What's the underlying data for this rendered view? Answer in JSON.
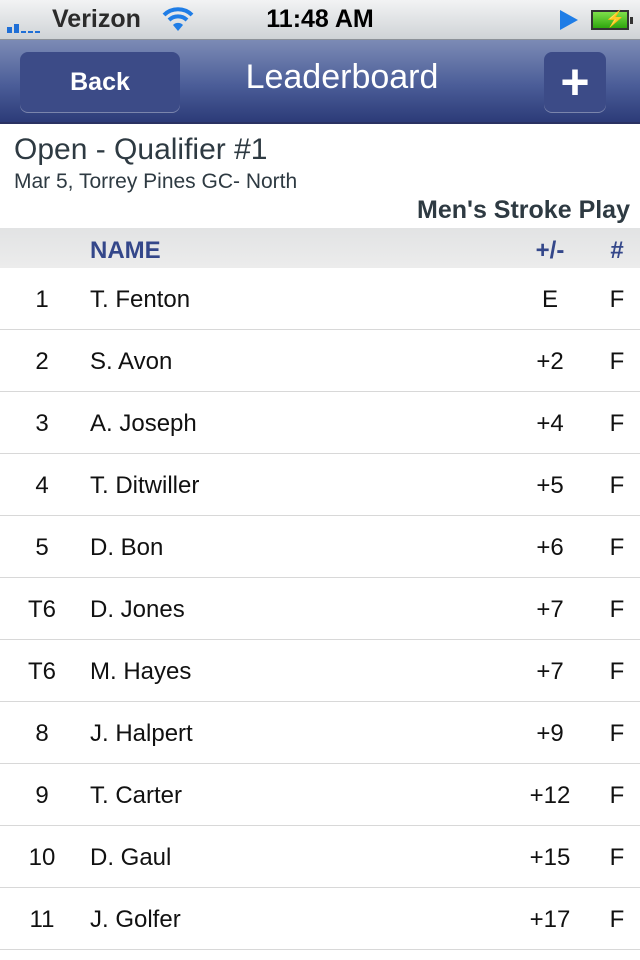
{
  "status_bar": {
    "carrier": "Verizon",
    "time": "11:48 AM"
  },
  "nav": {
    "back_label": "Back",
    "title": "Leaderboard",
    "add_label": "+"
  },
  "event": {
    "name": "Open - Qualifier #1",
    "details": "Mar 5, Torrey Pines GC- North",
    "category": "Men's Stroke Play"
  },
  "table": {
    "headers": {
      "position": "",
      "name": "NAME",
      "score": "+/-",
      "thru": "#"
    },
    "rows": [
      {
        "pos": "1",
        "name": "T. Fenton",
        "score": "E",
        "thru": "F"
      },
      {
        "pos": "2",
        "name": "S. Avon",
        "score": "+2",
        "thru": "F"
      },
      {
        "pos": "3",
        "name": "A. Joseph",
        "score": "+4",
        "thru": "F"
      },
      {
        "pos": "4",
        "name": "T. Ditwiller",
        "score": "+5",
        "thru": "F"
      },
      {
        "pos": "5",
        "name": "D. Bon",
        "score": "+6",
        "thru": "F"
      },
      {
        "pos": "T6",
        "name": "D. Jones",
        "score": "+7",
        "thru": "F"
      },
      {
        "pos": "T6",
        "name": "M. Hayes",
        "score": "+7",
        "thru": "F"
      },
      {
        "pos": "8",
        "name": "J. Halpert",
        "score": "+9",
        "thru": "F"
      },
      {
        "pos": "9",
        "name": "T. Carter",
        "score": "+12",
        "thru": "F"
      },
      {
        "pos": "10",
        "name": "D. Gaul",
        "score": "+15",
        "thru": "F"
      },
      {
        "pos": "11",
        "name": "J. Golfer",
        "score": "+17",
        "thru": "F"
      }
    ]
  }
}
